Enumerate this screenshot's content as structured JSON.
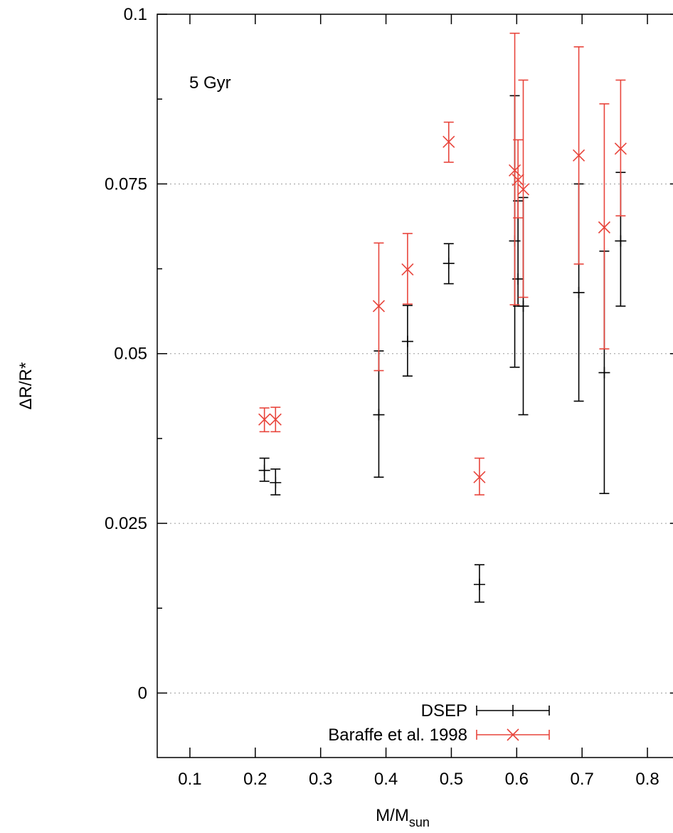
{
  "chart_data": {
    "type": "scatter",
    "title": "",
    "annotation": "5 Gyr",
    "xlabel": "M/M",
    "xlabel_subscript": "sun",
    "ylabel": "ΔR/R*",
    "xlim": [
      0.05,
      0.85
    ],
    "ylim": [
      -0.0095,
      0.1
    ],
    "x_ticks": [
      0.1,
      0.2,
      0.3,
      0.4,
      0.5,
      0.6,
      0.7,
      0.8
    ],
    "x_tick_labels": [
      "0.1",
      "0.2",
      "0.3",
      "0.4",
      "0.5",
      "0.6",
      "0.7",
      "0.8"
    ],
    "y_ticks": [
      0,
      0.025,
      0.05,
      0.075,
      0.1
    ],
    "y_tick_labels": [
      "0",
      "0.025",
      "0.05",
      "0.075",
      "0.1"
    ],
    "y_minor_ticks": [
      0.0125,
      0.0375,
      0.0625,
      0.0875
    ],
    "grid": "horizontal dotted at major y ticks",
    "legend_position": "bottom-center",
    "series": [
      {
        "name": "DSEP",
        "color": "#000000",
        "marker": "plus",
        "points": [
          {
            "x": 0.214,
            "y": 0.0328,
            "yerr_low": 0.0312,
            "yerr_high": 0.0346
          },
          {
            "x": 0.231,
            "y": 0.031,
            "yerr_low": 0.0292,
            "yerr_high": 0.033
          },
          {
            "x": 0.389,
            "y": 0.041,
            "yerr_low": 0.0318,
            "yerr_high": 0.0504
          },
          {
            "x": 0.433,
            "y": 0.0518,
            "yerr_low": 0.0467,
            "yerr_high": 0.0571
          },
          {
            "x": 0.496,
            "y": 0.0633,
            "yerr_low": 0.0603,
            "yerr_high": 0.0662
          },
          {
            "x": 0.543,
            "y": 0.016,
            "yerr_low": 0.0134,
            "yerr_high": 0.0189
          },
          {
            "x": 0.597,
            "y": 0.0666,
            "yerr_low": 0.048,
            "yerr_high": 0.088
          },
          {
            "x": 0.602,
            "y": 0.061,
            "yerr_low": 0.057,
            "yerr_high": 0.0725
          },
          {
            "x": 0.61,
            "y": 0.057,
            "yerr_low": 0.041,
            "yerr_high": 0.073
          },
          {
            "x": 0.695,
            "y": 0.059,
            "yerr_low": 0.043,
            "yerr_high": 0.075
          },
          {
            "x": 0.734,
            "y": 0.0472,
            "yerr_low": 0.0294,
            "yerr_high": 0.0651
          },
          {
            "x": 0.759,
            "y": 0.0666,
            "yerr_low": 0.057,
            "yerr_high": 0.0767
          }
        ]
      },
      {
        "name": "Baraffe et al. 1998",
        "color": "#e8453c",
        "marker": "cross",
        "points": [
          {
            "x": 0.214,
            "y": 0.0403,
            "yerr_low": 0.0385,
            "yerr_high": 0.042
          },
          {
            "x": 0.231,
            "y": 0.0403,
            "yerr_low": 0.0385,
            "yerr_high": 0.0421
          },
          {
            "x": 0.389,
            "y": 0.057,
            "yerr_low": 0.0475,
            "yerr_high": 0.0663
          },
          {
            "x": 0.433,
            "y": 0.0624,
            "yerr_low": 0.0573,
            "yerr_high": 0.0677
          },
          {
            "x": 0.496,
            "y": 0.0812,
            "yerr_low": 0.0782,
            "yerr_high": 0.0841
          },
          {
            "x": 0.543,
            "y": 0.0318,
            "yerr_low": 0.0292,
            "yerr_high": 0.0346
          },
          {
            "x": 0.597,
            "y": 0.077,
            "yerr_low": 0.0572,
            "yerr_high": 0.0972
          },
          {
            "x": 0.602,
            "y": 0.0756,
            "yerr_low": 0.07,
            "yerr_high": 0.0815
          },
          {
            "x": 0.61,
            "y": 0.0742,
            "yerr_low": 0.0583,
            "yerr_high": 0.0903
          },
          {
            "x": 0.695,
            "y": 0.0792,
            "yerr_low": 0.0632,
            "yerr_high": 0.0952
          },
          {
            "x": 0.734,
            "y": 0.0686,
            "yerr_low": 0.0507,
            "yerr_high": 0.0868
          },
          {
            "x": 0.759,
            "y": 0.0802,
            "yerr_low": 0.0703,
            "yerr_high": 0.0903
          }
        ]
      }
    ]
  }
}
